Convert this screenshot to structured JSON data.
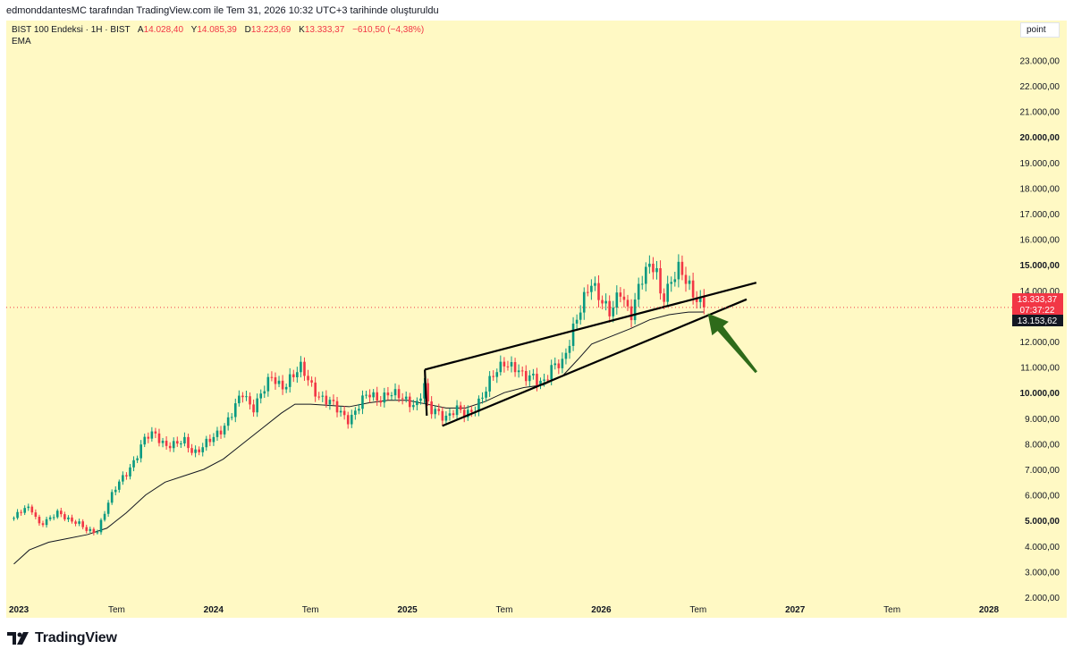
{
  "header": {
    "text": "edmonddantesMC tarafından TradingView.com ile Tem 31, 2026 10:32 UTC+3 tarihinde oluşturuldu"
  },
  "legend": {
    "symbol": "BIST 100 Endeksi · 1H · BIST",
    "open_label": "A",
    "open_value": "14.028,40",
    "high_label": "Y",
    "high_value": "14.085,39",
    "low_label": "D",
    "low_value": "13.223,69",
    "close_label": "K",
    "close_value": "13.333,37",
    "change": "−610,50 (−4,38%)",
    "indicator": "EMA"
  },
  "scale_mode": "point",
  "price_labels": {
    "last_price": "13.333,37",
    "countdown": "07:37:22",
    "ema_value": "13.153,62"
  },
  "branding": {
    "logo_text": "TradingView"
  },
  "colors": {
    "background": "#fff9c4",
    "up_candle": "#089981",
    "down_candle": "#f23645",
    "ema_line": "#131722",
    "trendline": "#000000",
    "arrow": "#2e6b1a"
  },
  "chart_data": {
    "type": "candlestick",
    "title": "BIST 100 Endeksi · 1H · BIST",
    "ylim": [
      1500,
      24000
    ],
    "x_range": [
      "2023-01",
      "2028-03"
    ],
    "y_ticks": [
      {
        "value": 2000,
        "label": "2.000,00",
        "bold": false
      },
      {
        "value": 3000,
        "label": "3.000,00",
        "bold": false
      },
      {
        "value": 4000,
        "label": "4.000,00",
        "bold": false
      },
      {
        "value": 5000,
        "label": "5.000,00",
        "bold": true
      },
      {
        "value": 6000,
        "label": "6.000,00",
        "bold": false
      },
      {
        "value": 7000,
        "label": "7.000,00",
        "bold": false
      },
      {
        "value": 8000,
        "label": "8.000,00",
        "bold": false
      },
      {
        "value": 9000,
        "label": "9.000,00",
        "bold": false
      },
      {
        "value": 10000,
        "label": "10.000,00",
        "bold": true
      },
      {
        "value": 11000,
        "label": "11.000,00",
        "bold": false
      },
      {
        "value": 12000,
        "label": "12.000,00",
        "bold": false
      },
      {
        "value": 13000,
        "label": "13.000,00",
        "bold": false
      },
      {
        "value": 14000,
        "label": "14.000,00",
        "bold": false
      },
      {
        "value": 15000,
        "label": "15.000,00",
        "bold": true
      },
      {
        "value": 16000,
        "label": "16.000,00",
        "bold": false
      },
      {
        "value": 17000,
        "label": "17.000,00",
        "bold": false
      },
      {
        "value": 18000,
        "label": "18.000,00",
        "bold": false
      },
      {
        "value": 19000,
        "label": "19.000,00",
        "bold": false
      },
      {
        "value": 20000,
        "label": "20.000,00",
        "bold": true
      },
      {
        "value": 21000,
        "label": "21.000,00",
        "bold": false
      },
      {
        "value": 22000,
        "label": "22.000,00",
        "bold": false
      },
      {
        "value": 23000,
        "label": "23.000,00",
        "bold": false
      }
    ],
    "x_ticks": [
      {
        "t": 2023.0,
        "label": "2023",
        "bold": true
      },
      {
        "t": 2023.5,
        "label": "Tem",
        "bold": false
      },
      {
        "t": 2024.0,
        "label": "2024",
        "bold": true
      },
      {
        "t": 2024.5,
        "label": "Tem",
        "bold": false
      },
      {
        "t": 2025.0,
        "label": "2025",
        "bold": true
      },
      {
        "t": 2025.5,
        "label": "Tem",
        "bold": false
      },
      {
        "t": 2026.0,
        "label": "2026",
        "bold": true
      },
      {
        "t": 2026.5,
        "label": "Tem",
        "bold": false
      },
      {
        "t": 2027.0,
        "label": "2027",
        "bold": true
      },
      {
        "t": 2027.5,
        "label": "Tem",
        "bold": false
      },
      {
        "t": 2028.0,
        "label": "2028",
        "bold": true
      }
    ],
    "close_path": [
      [
        2022.97,
        5100
      ],
      [
        2023.02,
        5400
      ],
      [
        2023.06,
        5500
      ],
      [
        2023.1,
        4900
      ],
      [
        2023.15,
        5000
      ],
      [
        2023.2,
        5300
      ],
      [
        2023.25,
        5100
      ],
      [
        2023.3,
        4900
      ],
      [
        2023.35,
        4550
      ],
      [
        2023.4,
        4600
      ],
      [
        2023.45,
        5600
      ],
      [
        2023.5,
        6300
      ],
      [
        2023.56,
        7000
      ],
      [
        2023.6,
        7500
      ],
      [
        2023.65,
        8200
      ],
      [
        2023.7,
        8400
      ],
      [
        2023.75,
        8000
      ],
      [
        2023.8,
        7900
      ],
      [
        2023.85,
        8100
      ],
      [
        2023.9,
        7700
      ],
      [
        2023.95,
        7900
      ],
      [
        2024.0,
        8200
      ],
      [
        2024.05,
        8700
      ],
      [
        2024.1,
        9300
      ],
      [
        2024.15,
        9900
      ],
      [
        2024.2,
        9400
      ],
      [
        2024.25,
        10100
      ],
      [
        2024.3,
        10500
      ],
      [
        2024.35,
        10200
      ],
      [
        2024.4,
        10700
      ],
      [
        2024.45,
        10900
      ],
      [
        2024.5,
        10300
      ],
      [
        2024.55,
        9900
      ],
      [
        2024.6,
        9600
      ],
      [
        2024.65,
        9200
      ],
      [
        2024.7,
        9000
      ],
      [
        2024.75,
        9500
      ],
      [
        2024.8,
        9900
      ],
      [
        2024.85,
        9800
      ],
      [
        2024.9,
        10000
      ],
      [
        2024.95,
        9800
      ],
      [
        2025.0,
        9700
      ],
      [
        2025.05,
        9600
      ],
      [
        2025.09,
        10300
      ],
      [
        2025.11,
        9200
      ],
      [
        2025.15,
        9300
      ],
      [
        2025.2,
        9100
      ],
      [
        2025.25,
        9300
      ],
      [
        2025.3,
        9100
      ],
      [
        2025.35,
        9500
      ],
      [
        2025.4,
        10000
      ],
      [
        2025.45,
        10700
      ],
      [
        2025.5,
        11300
      ],
      [
        2025.55,
        11000
      ],
      [
        2025.6,
        10500
      ],
      [
        2025.65,
        10700
      ],
      [
        2025.7,
        10400
      ],
      [
        2025.75,
        10900
      ],
      [
        2025.8,
        11200
      ],
      [
        2025.85,
        12500
      ],
      [
        2025.9,
        13300
      ],
      [
        2025.95,
        14300
      ],
      [
        2026.0,
        13800
      ],
      [
        2026.05,
        13000
      ],
      [
        2026.1,
        13900
      ],
      [
        2026.15,
        13100
      ],
      [
        2026.2,
        14300
      ],
      [
        2026.25,
        14800
      ],
      [
        2026.28,
        15000
      ],
      [
        2026.31,
        13800
      ],
      [
        2026.35,
        14200
      ],
      [
        2026.4,
        14700
      ],
      [
        2026.45,
        14300
      ],
      [
        2026.5,
        13700
      ],
      [
        2026.53,
        13333
      ]
    ],
    "ema_path": [
      [
        2022.97,
        3300
      ],
      [
        2023.05,
        3850
      ],
      [
        2023.15,
        4150
      ],
      [
        2023.25,
        4300
      ],
      [
        2023.35,
        4450
      ],
      [
        2023.45,
        4700
      ],
      [
        2023.55,
        5300
      ],
      [
        2023.65,
        6000
      ],
      [
        2023.75,
        6500
      ],
      [
        2023.85,
        6750
      ],
      [
        2023.95,
        7000
      ],
      [
        2024.05,
        7400
      ],
      [
        2024.15,
        8000
      ],
      [
        2024.25,
        8600
      ],
      [
        2024.35,
        9200
      ],
      [
        2024.42,
        9550
      ],
      [
        2024.5,
        9550
      ],
      [
        2024.6,
        9500
      ],
      [
        2024.7,
        9450
      ],
      [
        2024.8,
        9600
      ],
      [
        2024.9,
        9700
      ],
      [
        2025.0,
        9700
      ],
      [
        2025.1,
        9550
      ],
      [
        2025.2,
        9400
      ],
      [
        2025.3,
        9400
      ],
      [
        2025.4,
        9650
      ],
      [
        2025.5,
        10000
      ],
      [
        2025.6,
        10200
      ],
      [
        2025.7,
        10300
      ],
      [
        2025.8,
        10650
      ],
      [
        2025.88,
        11300
      ],
      [
        2025.95,
        11900
      ],
      [
        2026.05,
        12200
      ],
      [
        2026.15,
        12500
      ],
      [
        2026.25,
        12850
      ],
      [
        2026.35,
        13050
      ],
      [
        2026.45,
        13150
      ],
      [
        2026.53,
        13153
      ]
    ],
    "trendlines": [
      {
        "name": "upper",
        "from": [
          2025.09,
          10900
        ],
        "to": [
          2026.8,
          14300
        ]
      },
      {
        "name": "lower",
        "from": [
          2025.18,
          8700
        ],
        "to": [
          2026.75,
          13650
        ]
      },
      {
        "name": "apex-left",
        "from": [
          2025.09,
          10900
        ],
        "to": [
          2025.1,
          9100
        ]
      }
    ],
    "arrow": {
      "from": [
        2026.8,
        10800
      ],
      "to": [
        2026.55,
        13100
      ]
    },
    "last_close": 13333.37,
    "ema_last": 13153.62
  }
}
